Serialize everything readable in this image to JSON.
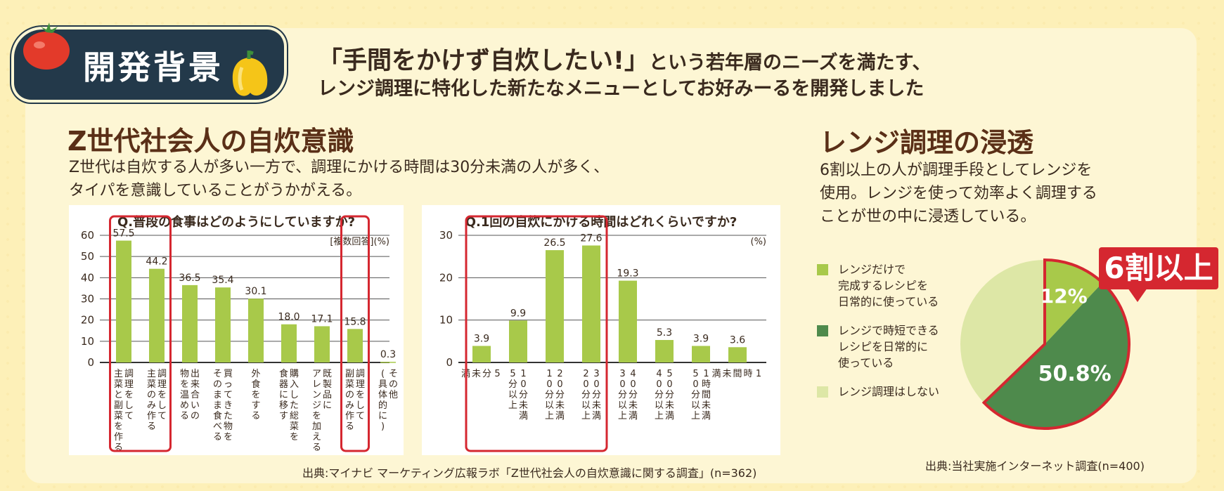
{
  "header": {
    "badge_label": "開発背景",
    "headline_quote": "「手間をかけず自炊したい!」",
    "headline_rest": "という若年層のニーズを満たす、",
    "headline_line2": "レンジ調理に特化した新たなメニューとしてお好みーるを開発しました"
  },
  "left_section": {
    "title": "Z世代社会人の自炊意識",
    "desc_line1": "Z世代は自炊する人が多い一方で、調理にかける時間は30分未満の人が多く、",
    "desc_line2": "タイパを意識していることがうかがえる。",
    "source": "出典:マイナビ マーケティング広報ラボ「Z世代社会人の自炊意識に関する調査」(n=362)"
  },
  "right_section": {
    "title": "レンジ調理の浸透",
    "desc_line1": "6割以上の人が調理手段としてレンジを",
    "desc_line2": "使用。レンジを使って効率よく調理する",
    "desc_line3": "ことが世の中に浸透している。",
    "callout": "6割以上",
    "source": "出典:当社実施インターネット調査(n=400)",
    "legend": [
      {
        "label_lines": [
          "レンジだけで",
          "完成するレシピを",
          "日常的に使っている"
        ],
        "color": "#a8c94a"
      },
      {
        "label_lines": [
          "レンジで時短できる",
          "レシピを日常的に",
          "使っている"
        ],
        "color": "#4e8a4c"
      },
      {
        "label_lines": [
          "レンジ調理はしない"
        ],
        "color": "#dde7a6"
      }
    ]
  },
  "colors": {
    "bar": "#a8c94a",
    "highlight": "#d52730",
    "dark_green": "#4e8a4c",
    "light_green": "#dde7a6",
    "navy": "#23394a"
  },
  "chart_data": [
    {
      "type": "bar",
      "title": "Q.普段の食事はどのようにしていますか?",
      "note": "[複数回答](%)",
      "categories": [
        [
          "調理をして",
          "主菜と副菜を作る"
        ],
        [
          "調理をして",
          "主菜のみ作る"
        ],
        [
          "出来合いの",
          "物を温める"
        ],
        [
          "買ってきた物を",
          "そのまま食べる"
        ],
        [
          "外食をする"
        ],
        [
          "購入した総菜を",
          "食器に移す"
        ],
        [
          "既製品に",
          "アレンジを加える"
        ],
        [
          "調理をして",
          "副菜のみ作る"
        ],
        [
          "その他",
          "(具体的に)"
        ]
      ],
      "values": [
        57.5,
        44.2,
        36.5,
        35.4,
        30.1,
        18.0,
        17.1,
        15.8,
        0.3
      ],
      "value_labels": [
        "57.5",
        "44.2",
        "36.5",
        "35.4",
        "30.1",
        "18.0",
        "17.1",
        "15.8",
        "0.3"
      ],
      "y_ticks": [
        "60",
        "50",
        "40",
        "30",
        "20",
        "10",
        "0"
      ],
      "ylim": [
        0,
        60
      ],
      "highlighted_groups": [
        [
          0,
          1
        ],
        [
          7,
          7
        ]
      ]
    },
    {
      "type": "bar",
      "title": "Q.1回の自炊にかける時間はどれくらいですか?",
      "note": "(%)",
      "categories": [
        [
          "5",
          "分",
          "未",
          "満"
        ],
        [
          "10分未満",
          "5分以上"
        ],
        [
          "20分未満",
          "10分以上"
        ],
        [
          "30分未満",
          "20分以上"
        ],
        [
          "40分未満",
          "30分以上"
        ],
        [
          "50分未満",
          "40分以上"
        ],
        [
          "1時間未満",
          "50分以上"
        ],
        [
          "1",
          "時",
          "間",
          "未",
          "満"
        ]
      ],
      "values": [
        3.9,
        9.9,
        26.5,
        27.6,
        19.3,
        5.3,
        3.9,
        3.6
      ],
      "value_labels": [
        "3.9",
        "9.9",
        "26.5",
        "27.6",
        "19.3",
        "5.3",
        "3.9",
        "3.6"
      ],
      "y_ticks": [
        "30",
        "20",
        "10",
        "0"
      ],
      "ylim": [
        0,
        30
      ],
      "highlighted_groups": [
        [
          0,
          3
        ]
      ]
    },
    {
      "type": "pie",
      "series": [
        {
          "name": "レンジだけで完成するレシピを日常的に使っている",
          "value": 12,
          "label": "12%",
          "color": "#a8c94a"
        },
        {
          "name": "レンジで時短できるレシピを日常的に使っている",
          "value": 50.8,
          "label": "50.8%",
          "color": "#4e8a4c"
        },
        {
          "name": "レンジ調理はしない",
          "value": 37.2,
          "color": "#dde7a6"
        }
      ],
      "highlighted": [
        0,
        1
      ]
    }
  ]
}
